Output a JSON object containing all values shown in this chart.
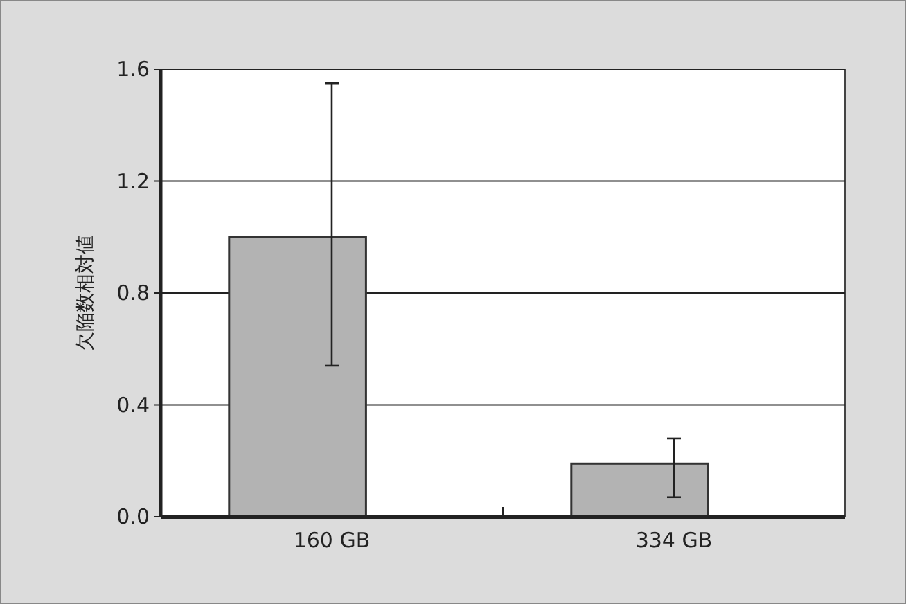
{
  "chart_data": {
    "type": "bar",
    "ylabel": "欠陥数相対値",
    "categories": [
      "160 GB",
      "334 GB"
    ],
    "values": [
      1.0,
      0.19
    ],
    "color": "#b3b3b3",
    "errors": [
      [
        0.54,
        1.55
      ],
      [
        0.07,
        0.28
      ]
    ],
    "ylim": [
      0,
      1.6
    ],
    "yticks": [
      {
        "value": 0,
        "label": "0.0"
      },
      0.4,
      0.8,
      1.2,
      1.6
    ],
    "grid": "y"
  }
}
